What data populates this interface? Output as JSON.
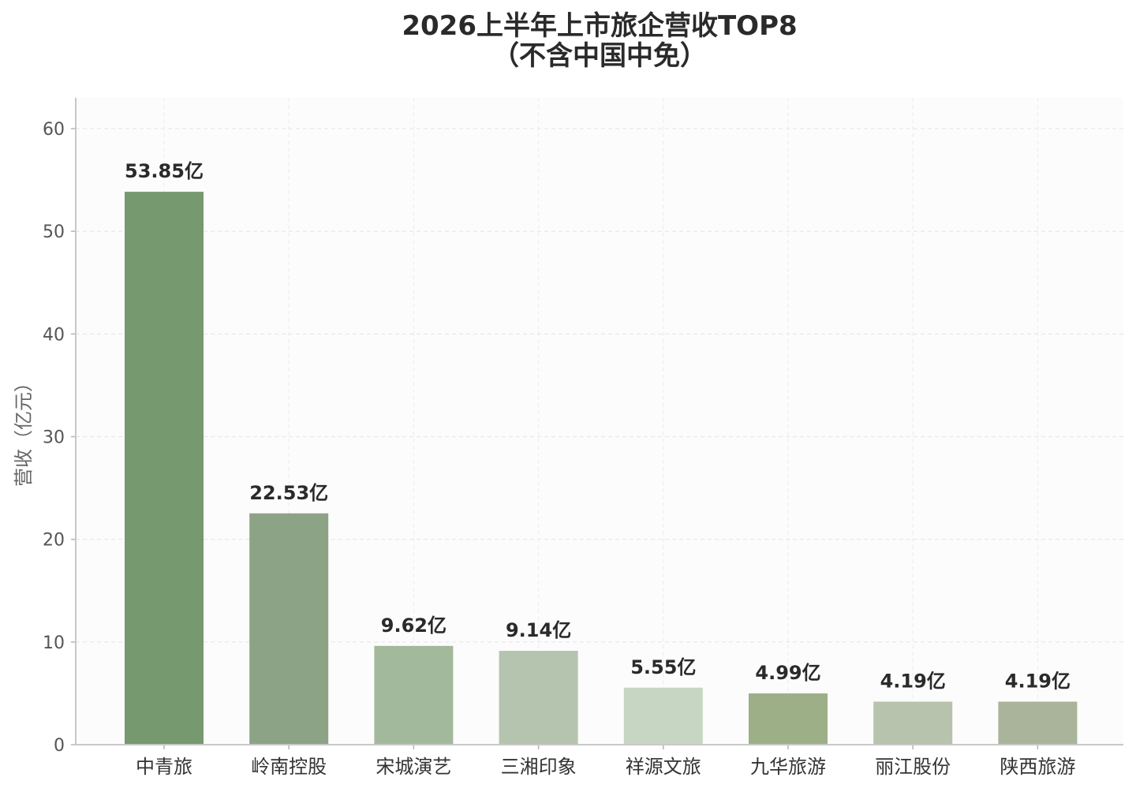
{
  "chart_data": {
    "type": "bar",
    "title": "2026上半年上市旅企营收TOP8",
    "subtitle": "（不含中国中免）",
    "xlabel": "",
    "ylabel": "营收（亿元）",
    "categories": [
      "中青旅",
      "岭南控股",
      "宋城演艺",
      "三湘印象",
      "祥源文旅",
      "九华旅游",
      "丽江股份",
      "陕西旅游"
    ],
    "values": [
      53.85,
      22.53,
      9.62,
      9.14,
      5.55,
      4.99,
      4.19,
      4.19
    ],
    "value_labels": [
      "53.85亿",
      "22.53亿",
      "9.62亿",
      "9.14亿",
      "5.55亿",
      "4.99亿",
      "4.19亿",
      "4.19亿"
    ],
    "colors": [
      "#77996f",
      "#8da385",
      "#a3b99b",
      "#b5c4af",
      "#c6d6c2",
      "#9caf86",
      "#b7c3ad",
      "#a9b49a"
    ],
    "ylim": [
      0,
      63
    ],
    "yticks": [
      0,
      10,
      20,
      30,
      40,
      50,
      60
    ],
    "ytick_labels": [
      "0",
      "10",
      "20",
      "30",
      "40",
      "50",
      "60"
    ],
    "grid": true,
    "legend": "none"
  }
}
